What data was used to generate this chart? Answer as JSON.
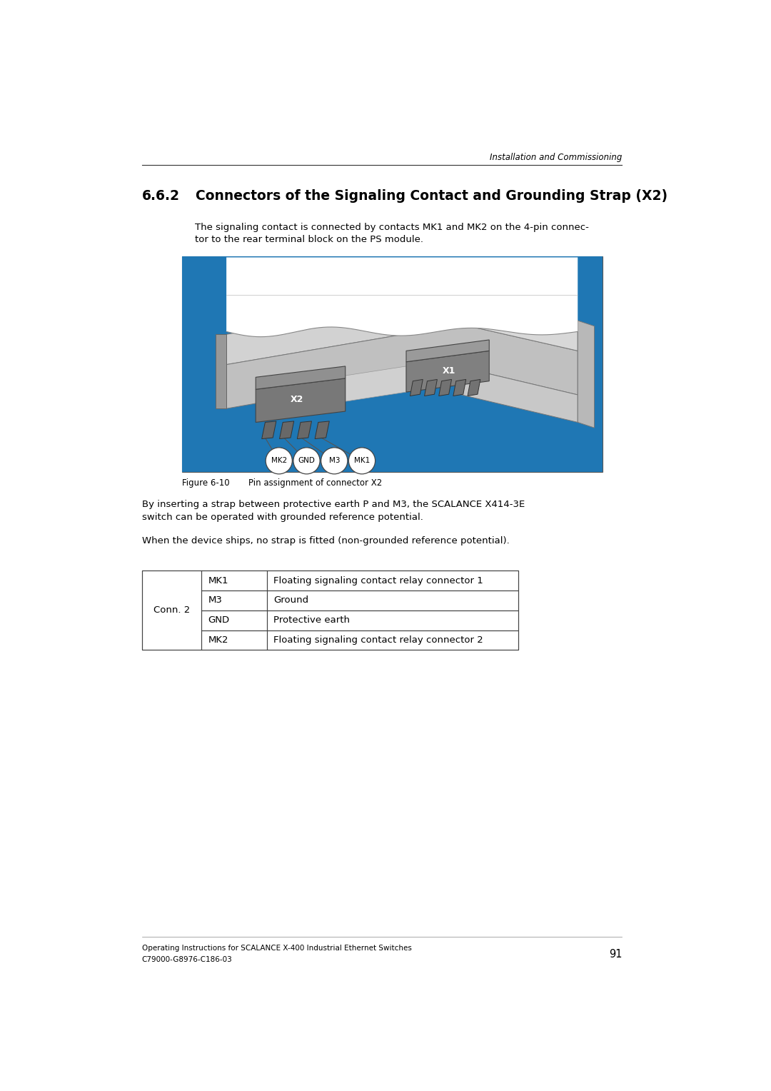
{
  "header_italic": "Installation and Commissioning",
  "section_num": "6.6.2",
  "section_title": "Connectors of the Signaling Contact and Grounding Strap (X2)",
  "body_text1_line1": "The signaling contact is connected by contacts MK1 and MK2 on the 4-pin connec-",
  "body_text1_line2": "tor to the rear terminal block on the PS module.",
  "figure_caption_num": "Figure 6-10",
  "figure_caption_text": "Pin assignment of connector X2",
  "body_text2_line1": "By inserting a strap between protective earth P and M3, the SCALANCE X414-3E",
  "body_text2_line2": "switch can be operated with grounded reference potential.",
  "body_text3": "When the device ships, no strap is fitted (non-grounded reference potential).",
  "table_col1": "Conn. 2",
  "table_rows": [
    [
      "MK1",
      "Floating signaling contact relay connector 1"
    ],
    [
      "M3",
      "Ground"
    ],
    [
      "GND",
      "Protective earth"
    ],
    [
      "MK2",
      "Floating signaling contact relay connector 2"
    ]
  ],
  "footer_line1": "Operating Instructions for SCALANCE X-400 Industrial Ethernet Switches",
  "footer_line2": "C79000-G8976-C186-03",
  "footer_page": "91",
  "bg_color": "#ffffff",
  "text_color": "#000000",
  "gray_light": "#d0d0d0",
  "gray_mid": "#b0b0b0",
  "gray_dark": "#808080",
  "gray_connector": "#787878",
  "gray_left": "#989898",
  "line_color": "#555555"
}
